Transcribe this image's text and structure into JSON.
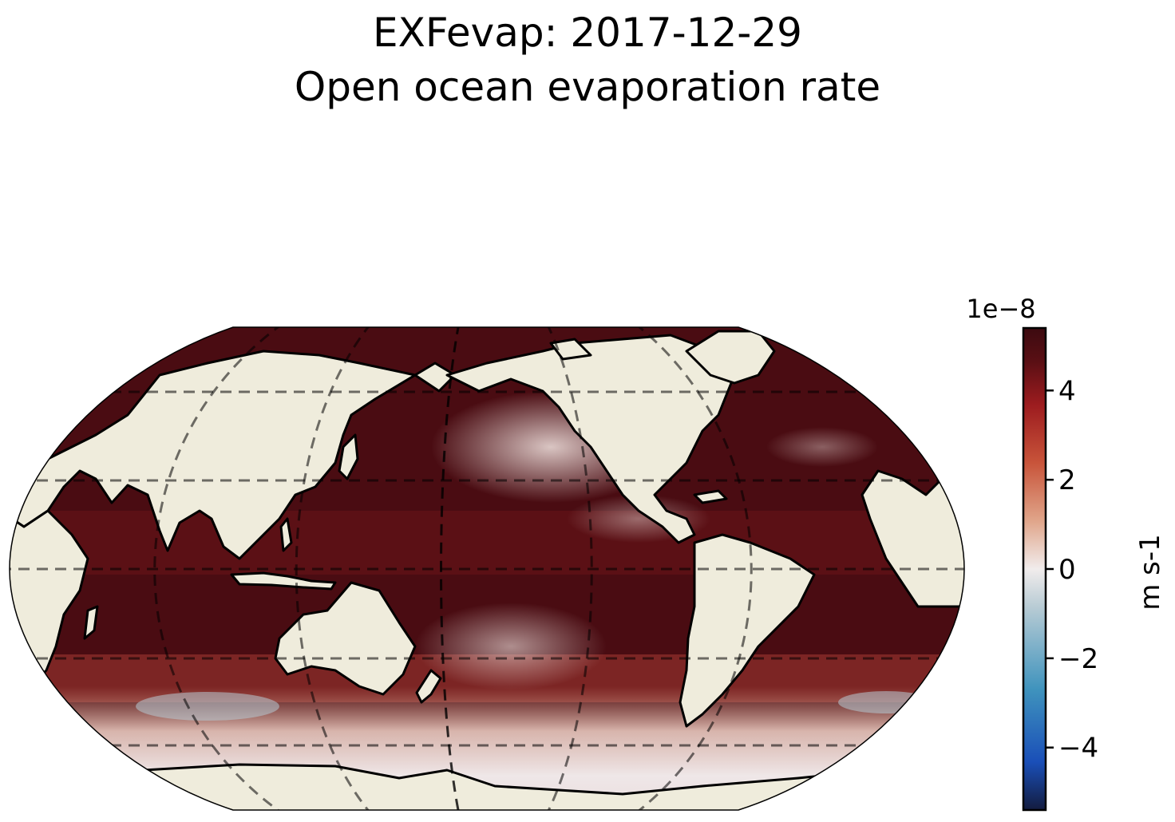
{
  "title": "EXFevap: 2017-12-29",
  "subtitle": "Open ocean evaporation rate",
  "colorbar": {
    "label": "m s-1",
    "offset_text": "1e−8",
    "ticks": [
      {
        "value": 4,
        "label": "4"
      },
      {
        "value": 2,
        "label": "2"
      },
      {
        "value": 0,
        "label": "0"
      },
      {
        "value": -2,
        "label": "−2"
      },
      {
        "value": -4,
        "label": "−4"
      }
    ],
    "range": [
      -5.4,
      5.4
    ],
    "colormap": "balance (blue - white - dark red)",
    "colors": [
      "#131c3f",
      "#1a4fb8",
      "#3f93bd",
      "#b7cbd4",
      "#f1ecec",
      "#e0a58a",
      "#c8543a",
      "#9d1c1f",
      "#5a0f14",
      "#3c0a10"
    ]
  },
  "map": {
    "projection": "Robinson",
    "central_longitude": -160,
    "land_color": "#efecdc",
    "gridlines": "dashed",
    "parallels": [
      -60,
      -30,
      0,
      30,
      60
    ],
    "meridians": [
      120,
      180,
      -120
    ]
  }
}
